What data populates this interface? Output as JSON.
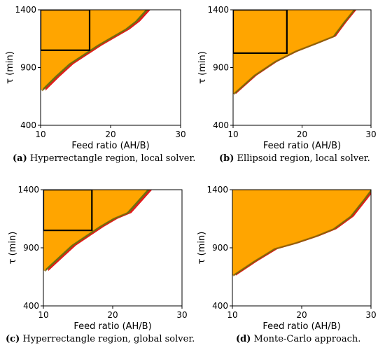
{
  "chart_data": [
    {
      "type": "area",
      "panel_letter": "(a)",
      "caption": "Hyperrectangle region, local solver.",
      "xlabel": "Feed ratio (AH/B)",
      "ylabel": "τ (min)",
      "xlim": [
        10,
        30
      ],
      "ylim": [
        400,
        1400
      ],
      "xticks": [
        10,
        20,
        30
      ],
      "yticks": [
        400,
        900,
        1400
      ],
      "feasible_boundary": {
        "x": [
          10,
          12,
          14,
          16,
          18,
          20,
          22,
          23.5,
          25
        ],
        "y": [
          700,
          820,
          930,
          1010,
          1090,
          1160,
          1230,
          1300,
          1400
        ]
      },
      "rectangle": {
        "x": [
          10,
          17
        ],
        "y": [
          1050,
          1400
        ]
      },
      "band_widths": {
        "green": 0.35,
        "red": 0.35
      },
      "colors": {
        "feasible": "#FFA500",
        "green": "#2CA02C",
        "red": "#E41A1C",
        "edge": "#8B5A00",
        "rect": "#000000"
      }
    },
    {
      "type": "area",
      "panel_letter": "(b)",
      "caption": "Ellipsoid region, local solver.",
      "xlabel": "Feed ratio (AH/B)",
      "ylabel": "τ (min)",
      "xlim": [
        10,
        30
      ],
      "ylim": [
        400,
        1400
      ],
      "xticks": [
        10,
        20,
        30
      ],
      "yticks": [
        400,
        900,
        1400
      ],
      "feasible_boundary": {
        "x": [
          10,
          13,
          16,
          19,
          22,
          24.5,
          26,
          27.5
        ],
        "y": [
          670,
          830,
          950,
          1040,
          1110,
          1170,
          1290,
          1400
        ]
      },
      "rectangle": {
        "x": [
          10,
          17.8
        ],
        "y": [
          1025,
          1400
        ]
      },
      "band_widths": {
        "green": 0.2,
        "red": 0.2
      },
      "colors": {
        "feasible": "#FFA500",
        "green": "#2CA02C",
        "red": "#E41A1C",
        "edge": "#8B5A00",
        "rect": "#000000"
      }
    },
    {
      "type": "area",
      "panel_letter": "(c)",
      "caption": "Hyperrectangle region, global solver.",
      "xlabel": "Feed ratio (AH/B)",
      "ylabel": "τ (min)",
      "xlim": [
        10,
        30
      ],
      "ylim": [
        400,
        1400
      ],
      "xticks": [
        10,
        20,
        30
      ],
      "yticks": [
        400,
        900,
        1400
      ],
      "feasible_boundary": {
        "x": [
          10,
          12,
          14,
          16,
          18,
          20,
          22,
          23.5,
          25
        ],
        "y": [
          700,
          810,
          920,
          1000,
          1080,
          1150,
          1200,
          1300,
          1400
        ]
      },
      "rectangle": {
        "x": [
          10,
          17
        ],
        "y": [
          1050,
          1400
        ]
      },
      "band_widths": {
        "green": 0.35,
        "red": 0.35
      },
      "colors": {
        "feasible": "#FFA500",
        "green": "#2CA02C",
        "red": "#E41A1C",
        "edge": "#8B5A00",
        "rect": "#000000"
      }
    },
    {
      "type": "area",
      "panel_letter": "(d)",
      "caption": "Monte-Carlo approach.",
      "xlabel": "Feed ratio (AH/B)",
      "ylabel": "τ (min)",
      "xlim": [
        10,
        30
      ],
      "ylim": [
        400,
        1400
      ],
      "xticks": [
        10,
        20,
        30
      ],
      "yticks": [
        400,
        900,
        1400
      ],
      "feasible_boundary": {
        "x": [
          10,
          13,
          16,
          19,
          22,
          24.5,
          27,
          29,
          30
        ],
        "y": [
          660,
          780,
          890,
          940,
          1000,
          1060,
          1170,
          1320,
          1400
        ]
      },
      "rectangle": null,
      "band_widths": {
        "green": 0.2,
        "red": 0.3
      },
      "colors": {
        "feasible": "#FFA500",
        "green": "#2CA02C",
        "red": "#E41A1C",
        "edge": "#8B5A00",
        "rect": "#000000"
      }
    }
  ]
}
